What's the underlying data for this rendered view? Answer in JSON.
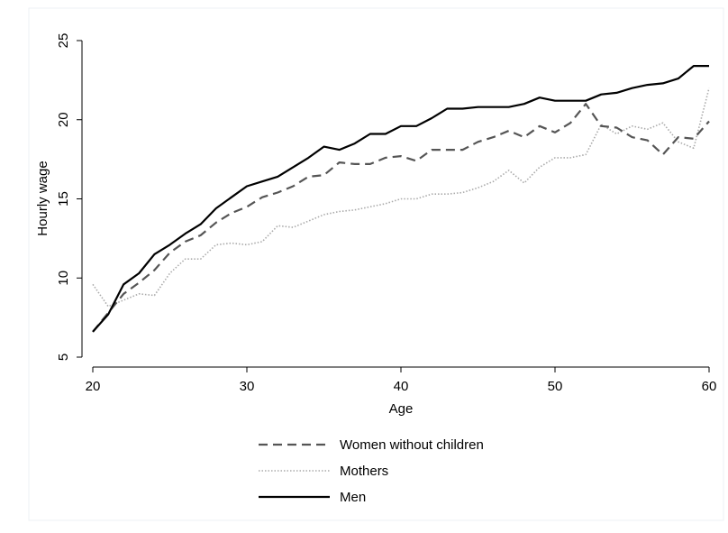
{
  "chart_data": {
    "type": "line",
    "xlabel": "Age",
    "ylabel": "Hourly wage",
    "xlim": [
      20,
      60
    ],
    "ylim": [
      5,
      25
    ],
    "x_ticks": [
      "20",
      "30",
      "40",
      "50",
      "60"
    ],
    "y_ticks": [
      "5",
      "10",
      "15",
      "20",
      "25"
    ],
    "grid": false,
    "legend_position": "bottom",
    "x": [
      20,
      21,
      22,
      23,
      24,
      25,
      26,
      27,
      28,
      29,
      30,
      31,
      32,
      33,
      34,
      35,
      36,
      37,
      38,
      39,
      40,
      41,
      42,
      43,
      44,
      45,
      46,
      47,
      48,
      49,
      50,
      51,
      52,
      53,
      54,
      55,
      56,
      57,
      58,
      59,
      60
    ],
    "series": [
      {
        "name": "Women without children",
        "style": "dashed",
        "color": "#555555",
        "values": [
          6.6,
          7.8,
          9.0,
          9.7,
          10.5,
          11.6,
          12.3,
          12.7,
          13.5,
          14.1,
          14.5,
          15.1,
          15.4,
          15.8,
          16.4,
          16.5,
          17.3,
          17.2,
          17.2,
          17.6,
          17.7,
          17.4,
          18.1,
          18.1,
          18.1,
          18.6,
          18.9,
          19.3,
          18.9,
          19.6,
          19.2,
          19.8,
          21.0,
          19.6,
          19.5,
          18.9,
          18.7,
          17.8,
          18.9,
          18.8,
          19.9
        ]
      },
      {
        "name": "Mothers",
        "style": "dotted",
        "color": "#aaaaaa",
        "values": [
          9.6,
          8.2,
          8.6,
          9.0,
          8.9,
          10.3,
          11.2,
          11.2,
          12.1,
          12.2,
          12.1,
          12.3,
          13.3,
          13.2,
          13.6,
          14.0,
          14.2,
          14.3,
          14.5,
          14.7,
          15.0,
          15.0,
          15.3,
          15.3,
          15.4,
          15.7,
          16.1,
          16.8,
          16.0,
          17.0,
          17.6,
          17.6,
          17.8,
          19.7,
          19.1,
          19.6,
          19.4,
          19.8,
          18.6,
          18.2,
          22.0
        ]
      },
      {
        "name": "Men",
        "style": "solid",
        "color": "#000000",
        "values": [
          6.6,
          7.7,
          9.6,
          10.3,
          11.5,
          12.1,
          12.8,
          13.4,
          14.4,
          15.1,
          15.8,
          16.1,
          16.4,
          17.0,
          17.6,
          18.3,
          18.1,
          18.5,
          19.1,
          19.1,
          19.6,
          19.6,
          20.1,
          20.7,
          20.7,
          20.8,
          20.8,
          20.8,
          21.0,
          21.4,
          21.2,
          21.2,
          21.2,
          21.6,
          21.7,
          22.0,
          22.2,
          22.3,
          22.6,
          23.4,
          23.4
        ]
      }
    ]
  }
}
